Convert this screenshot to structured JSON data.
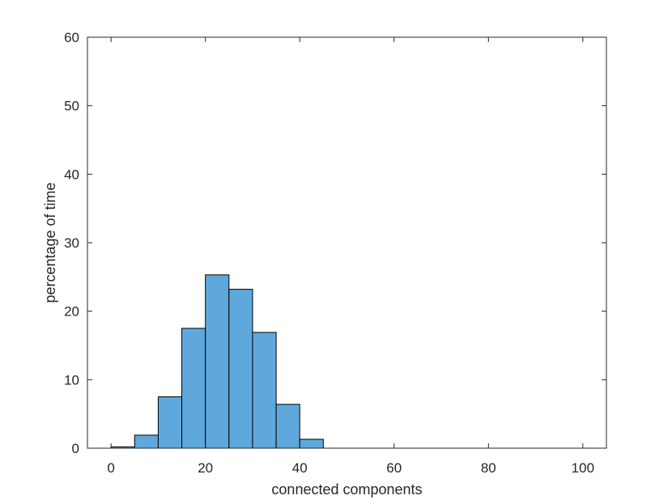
{
  "chart_data": {
    "type": "bar",
    "title": "",
    "xlabel": "connected components",
    "ylabel": "percentage of time",
    "xlim": [
      -5,
      105
    ],
    "ylim": [
      0,
      60
    ],
    "xticks": [
      "0",
      "20",
      "40",
      "60",
      "80",
      "100"
    ],
    "yticks": [
      "0",
      "10",
      "20",
      "30",
      "40",
      "50",
      "60"
    ],
    "grid": false,
    "bar_color": "#5ea8dc",
    "bar_edge_color": "#000000",
    "bins": [
      {
        "x0": 0,
        "x1": 5,
        "value": 0.2
      },
      {
        "x0": 5,
        "x1": 10,
        "value": 1.9
      },
      {
        "x0": 10,
        "x1": 15,
        "value": 7.5
      },
      {
        "x0": 15,
        "x1": 20,
        "value": 17.5
      },
      {
        "x0": 20,
        "x1": 25,
        "value": 25.3
      },
      {
        "x0": 25,
        "x1": 30,
        "value": 23.2
      },
      {
        "x0": 30,
        "x1": 35,
        "value": 16.9
      },
      {
        "x0": 35,
        "x1": 40,
        "value": 6.4
      },
      {
        "x0": 40,
        "x1": 45,
        "value": 1.3
      }
    ]
  }
}
